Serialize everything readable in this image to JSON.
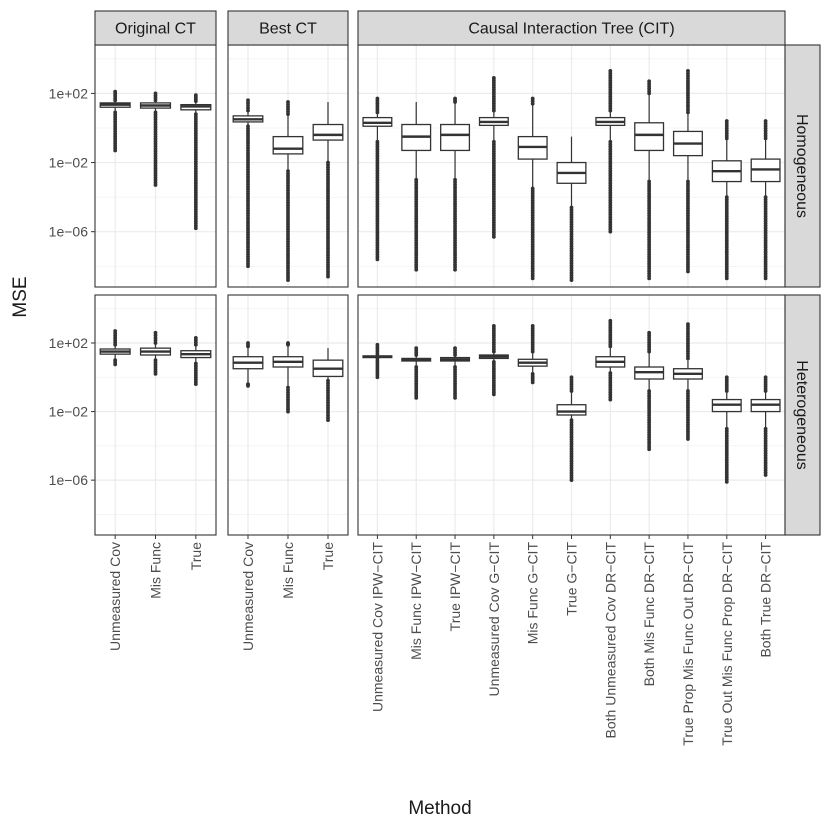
{
  "chart_data": {
    "type": "boxplot",
    "xlabel": "Method",
    "ylabel": "MSE",
    "y_scale": "log10",
    "ylim_log10": [
      -9.2,
      4.8
    ],
    "y_ticks": [
      {
        "label": "1e+02",
        "log10": 2
      },
      {
        "label": "1e−02",
        "log10": -2
      },
      {
        "label": "1e−06",
        "log10": -6
      }
    ],
    "facet_columns": [
      {
        "name": "Original CT",
        "categories": [
          "Unmeasured Cov",
          "Mis Func",
          "True"
        ]
      },
      {
        "name": "Best CT",
        "categories": [
          "Unmeasured Cov",
          "Mis Func",
          "True"
        ]
      },
      {
        "name": "Causal Interaction Tree (CIT)",
        "categories": [
          "Unmeasured Cov IPW−CIT",
          "Mis Func IPW−CIT",
          "True IPW−CIT",
          "Unmeasured Cov G−CIT",
          "Mis Func G−CIT",
          "True G−CIT",
          "Both Unmeasured Cov DR−CIT",
          "Both Mis Func DR−CIT",
          "True Prop Mis Func Out DR−CIT",
          "True Out Mis Func Prop DR−CIT",
          "Both True DR−CIT"
        ]
      }
    ],
    "facet_rows": [
      "Homogeneous",
      "Heterogeneous"
    ],
    "boxes_note": "log10(MSE) values: [lower whisker, Q1, median, Q3, upper whisker, min outlier, max outlier]",
    "boxes": {
      "Homogeneous": [
        [
          [
            0.9,
            1.2,
            1.35,
            1.45,
            1.6,
            -1.3,
            2.1
          ],
          [
            0.9,
            1.15,
            1.3,
            1.45,
            1.6,
            -3.3,
            2.0
          ],
          [
            0.8,
            1.05,
            1.25,
            1.35,
            1.55,
            -5.8,
            1.9
          ]
        ],
        [
          [
            0.1,
            0.35,
            0.5,
            0.7,
            1.0,
            -8.0,
            1.6
          ],
          [
            -2.5,
            -1.5,
            -1.2,
            -0.5,
            0.8,
            -8.8,
            1.5
          ],
          [
            -2.0,
            -0.7,
            -0.4,
            0.2,
            1.5,
            -8.6,
            1.5
          ]
        ],
        [
          [
            -0.8,
            0.1,
            0.3,
            0.6,
            0.9,
            -7.6,
            1.7
          ],
          [
            -3.0,
            -1.3,
            -0.5,
            0.2,
            1.5,
            -8.2,
            1.5
          ],
          [
            -3.0,
            -1.3,
            -0.4,
            0.2,
            1.5,
            -8.2,
            1.7
          ],
          [
            -0.8,
            0.15,
            0.35,
            0.6,
            1.0,
            -6.3,
            2.9
          ],
          [
            -3.5,
            -1.8,
            -1.1,
            -0.5,
            1.4,
            -8.7,
            1.7
          ],
          [
            -4.6,
            -3.2,
            -2.6,
            -2.0,
            -0.5,
            -8.8,
            -0.5
          ],
          [
            -0.8,
            0.15,
            0.35,
            0.6,
            1.0,
            -6.0,
            3.3
          ],
          [
            -3.1,
            -1.3,
            -0.4,
            0.3,
            2.0,
            -8.7,
            2.7
          ],
          [
            -3.1,
            -1.6,
            -0.9,
            -0.2,
            0.9,
            -8.3,
            3.3
          ],
          [
            -4.0,
            -3.1,
            -2.5,
            -1.9,
            -0.6,
            -8.7,
            0.4
          ],
          [
            -4.0,
            -3.1,
            -2.4,
            -1.8,
            -0.6,
            -8.7,
            0.4
          ]
        ]
      ],
      "Heterogeneous": [
        [
          [
            1.0,
            1.35,
            1.5,
            1.65,
            1.9,
            0.75,
            2.7
          ],
          [
            1.0,
            1.3,
            1.5,
            1.7,
            2.0,
            0.2,
            2.6
          ],
          [
            0.8,
            1.15,
            1.35,
            1.55,
            1.9,
            -0.4,
            2.3
          ]
        ],
        [
          [
            -0.4,
            0.5,
            0.85,
            1.2,
            1.8,
            -0.5,
            2.0
          ],
          [
            -0.6,
            0.6,
            0.9,
            1.2,
            1.9,
            -2.0,
            2.0
          ],
          [
            -0.2,
            0.05,
            0.5,
            1.0,
            1.7,
            -2.5,
            1.7
          ]
        ],
        [
          [
            1.1,
            1.15,
            1.2,
            1.25,
            1.35,
            0.0,
            1.9
          ],
          [
            0.6,
            0.95,
            1.05,
            1.1,
            1.3,
            -1.2,
            1.7
          ],
          [
            0.6,
            0.95,
            1.05,
            1.15,
            1.3,
            -1.2,
            1.7
          ],
          [
            0.9,
            1.1,
            1.2,
            1.3,
            1.5,
            -1.0,
            3.0
          ],
          [
            0.2,
            0.65,
            0.85,
            1.05,
            1.5,
            -0.3,
            3.0
          ],
          [
            -2.5,
            -2.2,
            -2.0,
            -1.6,
            -0.8,
            -6.0,
            0.0
          ],
          [
            0.25,
            0.6,
            0.9,
            1.2,
            1.8,
            -1.3,
            3.3
          ],
          [
            -0.8,
            -0.1,
            0.3,
            0.6,
            1.5,
            -4.2,
            2.6
          ],
          [
            -0.8,
            -0.1,
            0.2,
            0.5,
            1.1,
            -3.6,
            3.1
          ],
          [
            -3.0,
            -2.0,
            -1.6,
            -1.3,
            -0.8,
            -6.1,
            0.0
          ],
          [
            -3.0,
            -2.0,
            -1.6,
            -1.3,
            -0.8,
            -5.7,
            0.0
          ]
        ]
      ]
    }
  }
}
